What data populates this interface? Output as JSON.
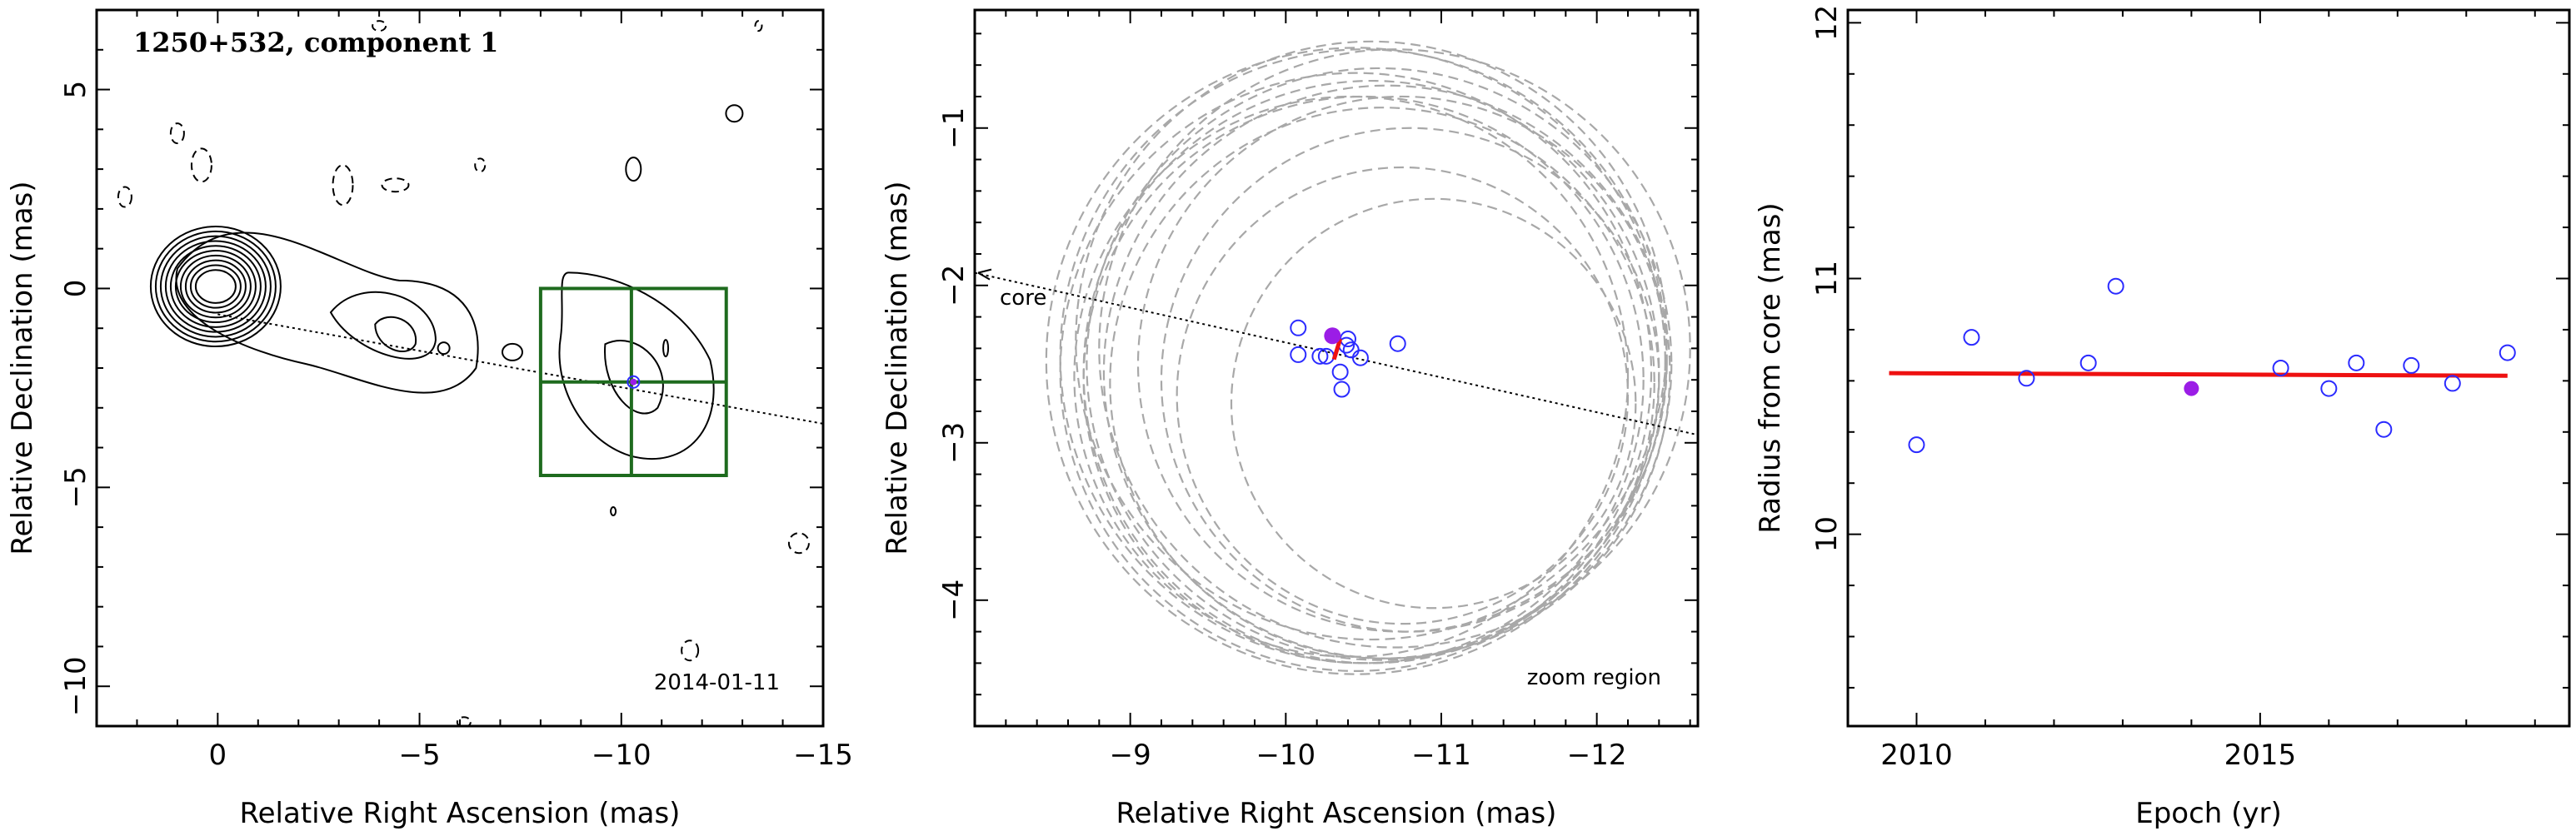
{
  "chart_data": [
    {
      "type": "contour",
      "title": "1250+532, component 1",
      "date_label": "2014-01-11",
      "xlabel": "Relative Right Ascension (mas)",
      "ylabel": "Relative Declination (mas)",
      "xlim": [
        3,
        -15
      ],
      "ylim": [
        -11,
        7
      ],
      "xticks": [
        0,
        -5,
        -10,
        -15
      ],
      "yticks": [
        -10,
        -5,
        0,
        5
      ],
      "core": [
        0,
        0
      ],
      "component": [
        -10.3,
        -2.35
      ],
      "direction_line": [
        [
          0,
          -0.65
        ],
        [
          -15,
          -3.4
        ]
      ],
      "zoom_box": {
        "x": [
          -8,
          -12.6
        ],
        "y": [
          0,
          -4.7
        ],
        "cross_x": -10.25,
        "cross_y": -2.35
      },
      "contour_levels_drawn": 10,
      "grid": false
    },
    {
      "type": "scatter",
      "xlabel": "Relative Right Ascension (mas)",
      "ylabel": "Relative Declination (mas)",
      "annotations": [
        "core",
        "zoom region"
      ],
      "xlim": [
        -8,
        -12.65
      ],
      "ylim": [
        -4.8,
        -0.25
      ],
      "xticks": [
        -9,
        -10,
        -11,
        -12
      ],
      "yticks": [
        -4,
        -3,
        -2,
        -1
      ],
      "direction_line": [
        [
          -8,
          -1.92
        ],
        [
          -12.65,
          -2.95
        ]
      ],
      "points": [
        [
          -10.08,
          -2.27
        ],
        [
          -10.08,
          -2.44
        ],
        [
          -10.22,
          -2.45
        ],
        [
          -10.26,
          -2.45
        ],
        [
          -10.35,
          -2.55
        ],
        [
          -10.36,
          -2.66
        ],
        [
          -10.39,
          -2.38
        ],
        [
          -10.4,
          -2.34
        ],
        [
          -10.42,
          -2.41
        ],
        [
          -10.48,
          -2.46
        ],
        [
          -10.72,
          -2.37
        ]
      ],
      "mean_point": [
        -10.3,
        -2.32
      ],
      "fit_segment": [
        [
          -10.35,
          -2.34
        ],
        [
          -10.31,
          -2.47
        ]
      ],
      "beam_circles": [
        {
          "cx": -10.55,
          "cy": -2.55,
          "r": 1.85
        },
        {
          "cx": -10.5,
          "cy": -2.6,
          "r": 1.8
        },
        {
          "cx": -10.6,
          "cy": -2.5,
          "r": 1.88
        },
        {
          "cx": -10.45,
          "cy": -2.55,
          "r": 1.9
        },
        {
          "cx": -10.62,
          "cy": -2.62,
          "r": 1.75
        },
        {
          "cx": -10.5,
          "cy": -2.45,
          "r": 1.95
        },
        {
          "cx": -10.7,
          "cy": -2.4,
          "r": 1.9
        },
        {
          "cx": -10.45,
          "cy": -2.48,
          "r": 1.99
        },
        {
          "cx": -10.75,
          "cy": -2.5,
          "r": 1.7
        },
        {
          "cx": -10.65,
          "cy": -2.55,
          "r": 1.82
        },
        {
          "cx": -10.42,
          "cy": -2.58,
          "r": 1.78
        },
        {
          "cx": -10.55,
          "cy": -2.35,
          "r": 1.9
        },
        {
          "cx": -10.8,
          "cy": -2.6,
          "r": 1.6
        },
        {
          "cx": -10.95,
          "cy": -2.75,
          "r": 1.3
        },
        {
          "cx": -10.75,
          "cy": -2.7,
          "r": 1.45
        }
      ],
      "grid": false
    },
    {
      "type": "scatter",
      "xlabel": "Epoch (yr)",
      "ylabel": "Radius from core (mas)",
      "xlim": [
        2009.0,
        2019.5
      ],
      "ylim": [
        9.25,
        12.05
      ],
      "xticks": [
        2010,
        2015
      ],
      "yticks": [
        10,
        11,
        12
      ],
      "points": [
        [
          2010.0,
          10.35
        ],
        [
          2010.8,
          10.77
        ],
        [
          2011.6,
          10.61
        ],
        [
          2012.5,
          10.67
        ],
        [
          2012.9,
          10.97
        ],
        [
          2015.3,
          10.65
        ],
        [
          2016.0,
          10.57
        ],
        [
          2016.4,
          10.67
        ],
        [
          2016.8,
          10.41
        ],
        [
          2017.2,
          10.66
        ],
        [
          2017.8,
          10.59
        ],
        [
          2018.6,
          10.71
        ]
      ],
      "mean_point": [
        2014.0,
        10.57
      ],
      "fit_line": [
        [
          2009.6,
          10.63
        ],
        [
          2018.6,
          10.62
        ]
      ],
      "grid": false
    }
  ],
  "colors": {
    "axis": "#000000",
    "contour": "#000000",
    "open_marker": "#2b2bff",
    "filled_marker": "#9b1de6",
    "fit_line": "#ee1111",
    "zoom_box": "#1e6b1e",
    "beam_circle": "#a8a8a8"
  }
}
